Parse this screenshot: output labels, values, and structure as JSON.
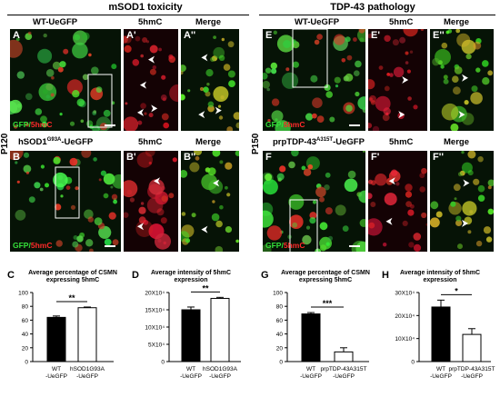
{
  "sections": {
    "left_title": "mSOD1 toxicity",
    "right_title": "TDP-43 pathology"
  },
  "rows": {
    "left": "P120",
    "right": "P150"
  },
  "columns": {
    "A": "WT-UeGFP",
    "A1": "5hmC",
    "A2": "Merge",
    "B": "hSOD1G93A-UeGFP",
    "B_main": "hSOD1",
    "B_sup": "G93A",
    "B_suffix": "-UeGFP",
    "B1": "5hmC",
    "B2": "Merge",
    "E": "WT-UeGFP",
    "E1": "5hmC",
    "E2": "Merge",
    "F_main": "prpTDP-43",
    "F_sup": "A315T",
    "F_suffix": "-UeGFP",
    "F1": "5hmC",
    "F2": "Merge"
  },
  "panel_letters": {
    "A": "A",
    "A1": "A'",
    "A2": "A''",
    "B": "B",
    "B1": "B'",
    "B2": "B''",
    "E": "E",
    "E1": "E'",
    "E2": "E''",
    "F": "F",
    "F1": "F'",
    "F2": "F''",
    "C": "C",
    "D": "D",
    "G": "G",
    "H": "H"
  },
  "channel_label": {
    "gfp": "GFP/",
    "hmc": "5hmC"
  },
  "colors": {
    "gfp": "#35e03a",
    "hmc": "#ff2a2a",
    "bar_filled": "#000000",
    "bar_empty": "#ffffff"
  },
  "chart_data": [
    {
      "panel": "C",
      "type": "bar",
      "title": "Average percentage of CSMN expressing 5hmC",
      "categories": [
        "WT -UeGFP",
        "hSOD1G93A -UeGFP"
      ],
      "values": [
        64,
        78
      ],
      "errors": [
        2,
        1
      ],
      "ylim": [
        0,
        100
      ],
      "yticks": [
        "0",
        "20",
        "40",
        "60",
        "80",
        "100"
      ],
      "significance": "**",
      "fills": [
        "filled",
        "empty"
      ]
    },
    {
      "panel": "D",
      "type": "bar",
      "title": "Average intensity of 5hmC expression",
      "categories": [
        "WT -UeGFP",
        "hSOD1G93A -UeGFP"
      ],
      "values": [
        150000,
        183000
      ],
      "errors": [
        8000,
        3000
      ],
      "ylim": [
        0,
        200000
      ],
      "yticks": [
        "0",
        "5X10⁴",
        "10X10⁴",
        "15X10⁴",
        "20X10⁴"
      ],
      "significance": "**",
      "fills": [
        "filled",
        "empty"
      ]
    },
    {
      "panel": "G",
      "type": "bar",
      "title": "Average percentage of CSMN expressing 5hmC",
      "categories": [
        "WT -UeGFP",
        "prpTDP-43A315T -UeGFP"
      ],
      "values": [
        69,
        14
      ],
      "errors": [
        2,
        6
      ],
      "ylim": [
        0,
        100
      ],
      "yticks": [
        "0",
        "20",
        "40",
        "60",
        "80",
        "100"
      ],
      "significance": "***",
      "fills": [
        "filled",
        "empty"
      ]
    },
    {
      "panel": "H",
      "type": "bar",
      "title": "Average intensity of 5hmC expression",
      "categories": [
        "WT -UeGFP",
        "prpTDP-43A315T -UeGFP"
      ],
      "values": [
        237000,
        118000
      ],
      "errors": [
        30000,
        25000
      ],
      "ylim": [
        0,
        300000
      ],
      "yticks": [
        "0",
        "10X10⁴",
        "20X10⁴",
        "30X10⁴"
      ],
      "significance": "*",
      "fills": [
        "filled",
        "empty"
      ]
    }
  ]
}
